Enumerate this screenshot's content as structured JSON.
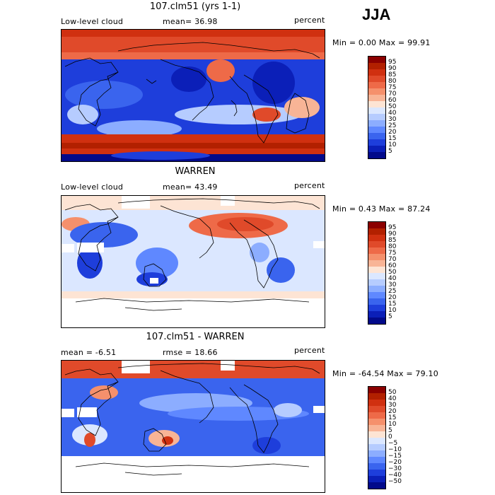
{
  "season": "JJA",
  "panels": [
    {
      "title": "107.clm51 (yrs 1-1)",
      "left_label": "Low-level cloud",
      "center_label": "mean=  36.98",
      "units": "percent",
      "minmax": "Min =   0.00 Max =  99.91",
      "colorbar": {
        "labels": [
          "95",
          "90",
          "85",
          "80",
          "75",
          "70",
          "60",
          "50",
          "40",
          "30",
          "25",
          "20",
          "15",
          "10",
          "5"
        ],
        "colors": [
          "#8b0000",
          "#b22000",
          "#d03010",
          "#e04a2a",
          "#ee6a48",
          "#f5906c",
          "#f8b496",
          "#fde4d4",
          "#dbe7ff",
          "#b6ccff",
          "#8cadff",
          "#5f88ff",
          "#3a64ee",
          "#1e3edb",
          "#0b1fb8",
          "#020a8a"
        ]
      }
    },
    {
      "title": "WARREN",
      "left_label": "Low-level cloud",
      "center_label": "mean=  43.49",
      "units": "percent",
      "minmax": "Min =   0.43 Max =  87.24",
      "colorbar": {
        "labels": [
          "95",
          "90",
          "85",
          "80",
          "75",
          "70",
          "60",
          "50",
          "40",
          "30",
          "25",
          "20",
          "15",
          "10",
          "5"
        ],
        "colors": [
          "#8b0000",
          "#b22000",
          "#d03010",
          "#e04a2a",
          "#ee6a48",
          "#f5906c",
          "#f8b496",
          "#fde4d4",
          "#dbe7ff",
          "#b6ccff",
          "#8cadff",
          "#5f88ff",
          "#3a64ee",
          "#1e3edb",
          "#0b1fb8",
          "#020a8a"
        ]
      }
    },
    {
      "title": "107.clm51 - WARREN",
      "left_label": "mean =   -6.51",
      "center_label": "rmse =  18.66",
      "units": "percent",
      "minmax": "Min = -64.54 Max =  79.10",
      "colorbar": {
        "labels": [
          "50",
          "40",
          "30",
          "20",
          "15",
          "10",
          "5",
          "0",
          "−5",
          "−10",
          "−15",
          "−20",
          "−30",
          "−40",
          "−50"
        ],
        "colors": [
          "#8b0000",
          "#b22000",
          "#d03010",
          "#e04a2a",
          "#ee6a48",
          "#f5906c",
          "#f8b496",
          "#fde4d4",
          "#dbe7ff",
          "#b6ccff",
          "#8cadff",
          "#5f88ff",
          "#3a64ee",
          "#1e3edb",
          "#0b1fb8",
          "#020a8a"
        ]
      }
    }
  ]
}
